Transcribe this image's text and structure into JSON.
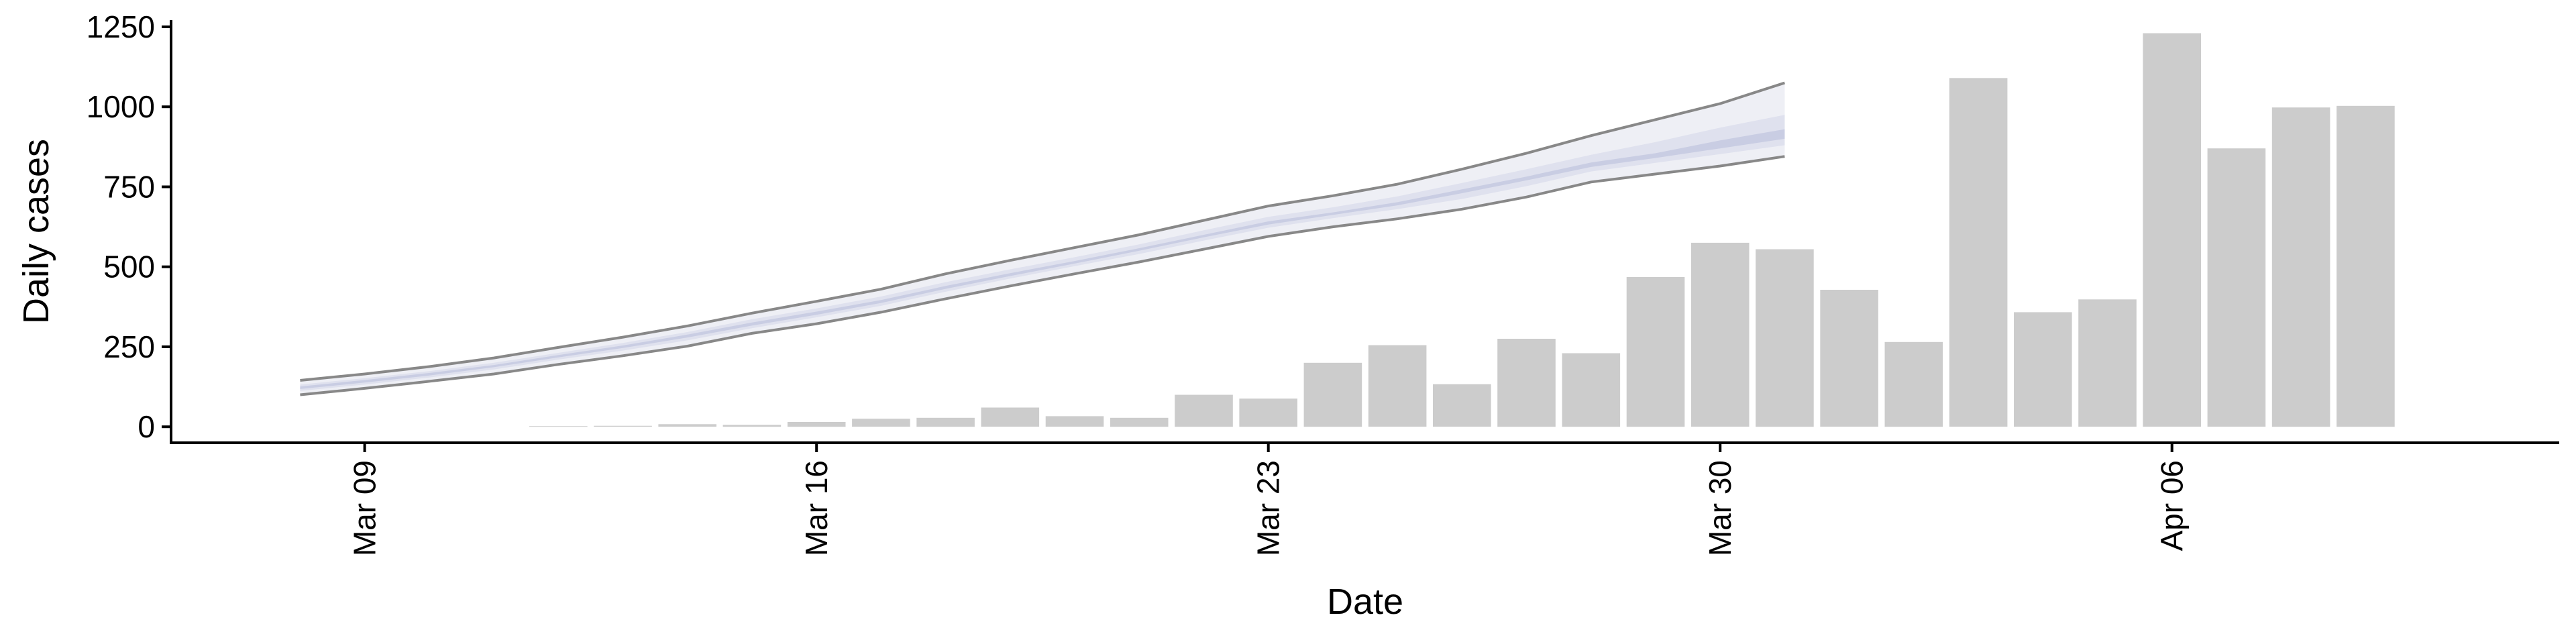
{
  "chart_data": {
    "type": "bar",
    "xlabel": "Date",
    "ylabel": "Daily cases",
    "ylim": [
      -50,
      1250
    ],
    "yticks": [
      0,
      250,
      500,
      750,
      1000,
      1250
    ],
    "xticks": [
      {
        "date": "2020-03-09",
        "label": "Mar 09"
      },
      {
        "date": "2020-03-16",
        "label": "Mar 16"
      },
      {
        "date": "2020-03-23",
        "label": "Mar 23"
      },
      {
        "date": "2020-03-30",
        "label": "Mar 30"
      },
      {
        "date": "2020-04-06",
        "label": "Apr 06"
      }
    ],
    "xlim": [
      "2020-03-06",
      "2020-04-12"
    ],
    "bars": {
      "x": [
        "2020-03-12",
        "2020-03-13",
        "2020-03-14",
        "2020-03-15",
        "2020-03-16",
        "2020-03-17",
        "2020-03-18",
        "2020-03-19",
        "2020-03-20",
        "2020-03-21",
        "2020-03-22",
        "2020-03-23",
        "2020-03-24",
        "2020-03-25",
        "2020-03-26",
        "2020-03-27",
        "2020-03-28",
        "2020-03-29",
        "2020-03-30",
        "2020-03-31",
        "2020-04-01",
        "2020-04-02",
        "2020-04-03",
        "2020-04-04",
        "2020-04-05",
        "2020-04-06",
        "2020-04-07",
        "2020-04-08",
        "2020-04-09"
      ],
      "values": [
        2,
        3,
        8,
        6,
        15,
        25,
        28,
        60,
        33,
        28,
        100,
        88,
        200,
        255,
        133,
        275,
        230,
        468,
        575,
        555,
        428,
        265,
        1090,
        358,
        398,
        1230,
        870,
        998,
        1003
      ],
      "color": "#cccccc"
    },
    "band": {
      "x": [
        "2020-03-08",
        "2020-03-09",
        "2020-03-10",
        "2020-03-11",
        "2020-03-12",
        "2020-03-13",
        "2020-03-14",
        "2020-03-15",
        "2020-03-16",
        "2020-03-17",
        "2020-03-18",
        "2020-03-19",
        "2020-03-20",
        "2020-03-21",
        "2020-03-22",
        "2020-03-23",
        "2020-03-24",
        "2020-03-25",
        "2020-03-26",
        "2020-03-27",
        "2020-03-28",
        "2020-03-29",
        "2020-03-30",
        "2020-03-31"
      ],
      "upper": [
        145,
        165,
        188,
        215,
        248,
        280,
        315,
        355,
        392,
        430,
        478,
        520,
        560,
        600,
        645,
        690,
        722,
        758,
        805,
        855,
        910,
        960,
        1010,
        1075
      ],
      "lower": [
        100,
        120,
        142,
        165,
        195,
        222,
        252,
        292,
        322,
        358,
        400,
        440,
        478,
        515,
        555,
        595,
        625,
        650,
        680,
        718,
        765,
        790,
        815,
        845
      ],
      "outer_upper": [
        138,
        158,
        180,
        207,
        238,
        270,
        305,
        345,
        380,
        418,
        465,
        506,
        545,
        585,
        630,
        675,
        705,
        740,
        785,
        830,
        880,
        925,
        980,
        1040
      ],
      "outer_lower": [
        106,
        126,
        148,
        172,
        203,
        230,
        262,
        300,
        332,
        368,
        410,
        450,
        488,
        525,
        566,
        606,
        636,
        662,
        692,
        730,
        778,
        805,
        832,
        862
      ],
      "mid_upper": [
        132,
        152,
        174,
        200,
        231,
        262,
        296,
        336,
        370,
        407,
        452,
        492,
        530,
        570,
        614,
        656,
        686,
        720,
        762,
        805,
        850,
        890,
        935,
        975
      ],
      "mid_lower": [
        112,
        132,
        154,
        179,
        210,
        238,
        270,
        308,
        342,
        378,
        422,
        463,
        502,
        540,
        582,
        622,
        652,
        680,
        712,
        752,
        798,
        825,
        852,
        880
      ],
      "inner_upper": [
        126,
        146,
        168,
        193,
        224,
        254,
        288,
        326,
        360,
        396,
        440,
        480,
        518,
        558,
        600,
        642,
        670,
        702,
        742,
        782,
        826,
        855,
        895,
        930
      ],
      "inner_lower": [
        118,
        138,
        160,
        186,
        217,
        246,
        279,
        316,
        350,
        387,
        431,
        471,
        510,
        550,
        592,
        632,
        662,
        692,
        730,
        770,
        812,
        840,
        870,
        900
      ],
      "colors": {
        "outer": "#eeeff5",
        "mid": "#dfe1ee",
        "inner": "#c9cde3",
        "line": "#888888"
      }
    },
    "grid": false,
    "legend": "none"
  }
}
